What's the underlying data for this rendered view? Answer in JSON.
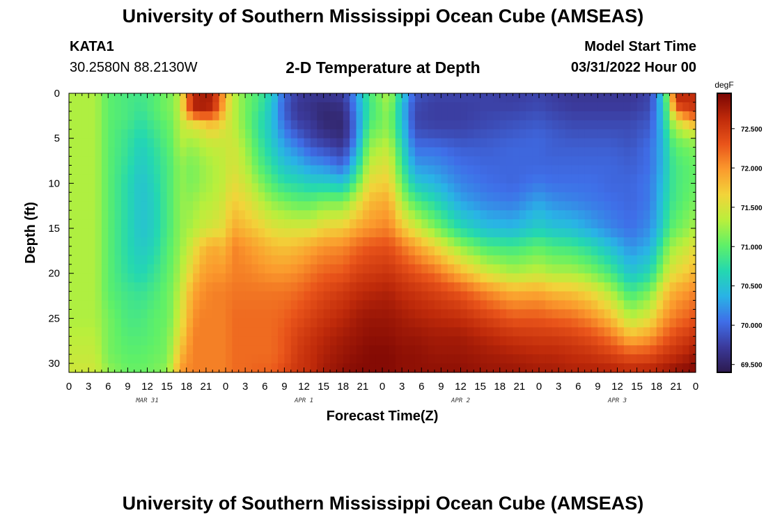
{
  "header": {
    "title": "University of Southern Mississippi Ocean Cube (AMSEAS)",
    "station_id": "KATA1",
    "coordinates": "30.2580N  88.2130W",
    "subtitle": "2-D Temperature at Depth",
    "model_start_label": "Model Start Time",
    "model_start_value": "03/31/2022 Hour 00"
  },
  "footer": {
    "title": "University of Southern Mississippi Ocean Cube (AMSEAS)"
  },
  "chart_data": {
    "type": "heatmap",
    "title": "2-D Temperature at Depth",
    "xlabel": "Forecast Time(Z)",
    "ylabel": "Depth (ft)",
    "x_hours": [
      0,
      96
    ],
    "x_tick_labels": [
      "0",
      "3",
      "6",
      "9",
      "12",
      "15",
      "18",
      "21",
      "0",
      "3",
      "6",
      "9",
      "12",
      "15",
      "18",
      "21",
      "0",
      "3",
      "6",
      "9",
      "12",
      "15",
      "18",
      "21",
      "0",
      "3",
      "6",
      "9",
      "12",
      "15",
      "18",
      "21",
      "0"
    ],
    "date_labels": [
      {
        "hour": 12,
        "label": "MAR 31"
      },
      {
        "hour": 36,
        "label": "APR 1"
      },
      {
        "hour": 60,
        "label": "APR 2"
      },
      {
        "hour": 84,
        "label": "APR 3"
      }
    ],
    "y_range": [
      0,
      31
    ],
    "y_ticks": [
      0,
      5,
      10,
      15,
      20,
      25,
      30
    ],
    "y_tick_labels": [
      "0",
      "5",
      "10",
      "15",
      "20",
      "25",
      "30"
    ],
    "colorbar": {
      "unit": "degF",
      "min": 69.4,
      "max": 72.95,
      "ticks": [
        69.5,
        70.0,
        70.5,
        71.0,
        71.5,
        72.0,
        72.5
      ],
      "tick_labels": [
        "69.500",
        "70.000",
        "70.500",
        "71.000",
        "71.500",
        "72.000",
        "72.500"
      ],
      "colors": [
        "#2c1a4e",
        "#3b3a9b",
        "#3f6ee8",
        "#29b3e6",
        "#24d8b0",
        "#5ef068",
        "#b9ef3c",
        "#f2d43a",
        "#fb9a2d",
        "#e9541a",
        "#bf2a0a",
        "#7a0503"
      ]
    },
    "depth_levels_ft": [
      0,
      1,
      2,
      3,
      4,
      5,
      6,
      8,
      10,
      12,
      15,
      17,
      20,
      22,
      25,
      27,
      29,
      31
    ],
    "time_nodes_hours": [
      0,
      4,
      6,
      9,
      11,
      13,
      15,
      16,
      17,
      19,
      20,
      22,
      24,
      25,
      27,
      29,
      31,
      33,
      35,
      37,
      39,
      42,
      44,
      46,
      49,
      51,
      53,
      56,
      60,
      64,
      68,
      72,
      74,
      77,
      80,
      83,
      86,
      89,
      91,
      92,
      93,
      95,
      96
    ],
    "temperature_degF": [
      [
        71.3,
        71.3,
        71.3,
        71.3,
        71.3,
        71.3,
        71.3,
        71.3,
        71.3,
        71.3,
        71.3,
        71.3,
        71.3,
        71.3,
        71.3,
        71.35,
        71.4,
        71.45
      ],
      [
        71.3,
        71.3,
        71.3,
        71.3,
        71.3,
        71.3,
        71.3,
        71.3,
        71.3,
        71.3,
        71.3,
        71.3,
        71.3,
        71.3,
        71.3,
        71.35,
        71.4,
        71.45
      ],
      [
        71.0,
        71.0,
        71.0,
        71.0,
        71.0,
        71.0,
        71.0,
        71.0,
        71.0,
        71.0,
        71.0,
        71.0,
        71.0,
        71.0,
        71.1,
        71.1,
        71.1,
        71.2
      ],
      [
        70.9,
        70.9,
        70.9,
        70.9,
        70.85,
        70.8,
        70.8,
        70.75,
        70.7,
        70.7,
        70.7,
        70.7,
        70.75,
        70.85,
        70.9,
        70.95,
        71.0,
        71.05
      ],
      [
        70.85,
        70.85,
        70.8,
        70.75,
        70.7,
        70.65,
        70.6,
        70.55,
        70.5,
        70.5,
        70.5,
        70.55,
        70.65,
        70.8,
        70.9,
        70.95,
        71.0,
        71.05
      ],
      [
        70.95,
        70.95,
        70.95,
        70.9,
        70.85,
        70.8,
        70.75,
        70.7,
        70.65,
        70.6,
        70.6,
        70.65,
        70.8,
        70.9,
        71.0,
        71.0,
        71.05,
        71.1
      ],
      [
        71.1,
        71.1,
        71.1,
        71.05,
        71.0,
        71.0,
        70.95,
        70.9,
        70.9,
        70.9,
        70.9,
        70.95,
        71.0,
        71.05,
        71.05,
        71.1,
        71.1,
        71.2
      ],
      [
        71.15,
        71.15,
        71.15,
        71.1,
        71.1,
        71.05,
        71.05,
        71.0,
        71.0,
        71.0,
        71.0,
        71.05,
        71.1,
        71.15,
        71.2,
        71.3,
        71.4,
        71.5
      ],
      [
        71.4,
        71.4,
        71.4,
        71.4,
        71.35,
        71.35,
        71.3,
        71.2,
        71.2,
        71.2,
        71.2,
        71.2,
        71.3,
        71.4,
        71.5,
        71.6,
        71.8,
        72.0
      ],
      [
        72.6,
        72.7,
        72.6,
        71.7,
        71.5,
        71.3,
        71.2,
        71.1,
        71.1,
        71.2,
        71.3,
        71.5,
        71.7,
        71.9,
        72.0,
        72.1,
        72.1,
        72.1
      ],
      [
        72.7,
        72.75,
        72.7,
        71.8,
        71.5,
        71.4,
        71.3,
        71.2,
        71.2,
        71.3,
        71.4,
        71.7,
        71.9,
        72.0,
        72.1,
        72.1,
        72.1,
        72.1
      ],
      [
        72.7,
        72.7,
        72.6,
        71.9,
        71.7,
        71.5,
        71.4,
        71.3,
        71.3,
        71.35,
        71.5,
        71.9,
        72.0,
        72.1,
        72.1,
        72.1,
        72.1,
        72.1
      ],
      [
        71.8,
        71.8,
        71.7,
        71.6,
        71.5,
        71.45,
        71.4,
        71.4,
        71.4,
        71.5,
        71.6,
        71.8,
        72.0,
        72.1,
        72.1,
        72.1,
        72.1,
        72.1
      ],
      [
        71.4,
        71.4,
        71.4,
        71.4,
        71.4,
        71.45,
        71.5,
        71.5,
        71.6,
        71.7,
        71.9,
        72.1,
        72.1,
        72.15,
        72.2,
        72.2,
        72.2,
        72.2
      ],
      [
        71.1,
        71.1,
        71.1,
        71.1,
        71.15,
        71.2,
        71.25,
        71.35,
        71.45,
        71.6,
        71.8,
        72.0,
        72.1,
        72.15,
        72.2,
        72.2,
        72.2,
        72.2
      ],
      [
        70.9,
        70.9,
        70.85,
        70.8,
        70.8,
        70.85,
        70.9,
        71.0,
        71.2,
        71.4,
        71.7,
        71.9,
        72.05,
        72.15,
        72.2,
        72.2,
        72.2,
        72.25
      ],
      [
        70.6,
        70.55,
        70.5,
        70.5,
        70.5,
        70.55,
        70.6,
        70.75,
        70.95,
        71.2,
        71.55,
        71.8,
        72.0,
        72.15,
        72.2,
        72.2,
        72.2,
        72.25
      ],
      [
        70.0,
        69.95,
        69.95,
        70.0,
        70.1,
        70.2,
        70.3,
        70.5,
        70.75,
        71.1,
        71.5,
        71.75,
        72.0,
        72.15,
        72.25,
        72.3,
        72.3,
        72.4
      ],
      [
        69.75,
        69.7,
        69.7,
        69.75,
        69.85,
        70.0,
        70.15,
        70.4,
        70.7,
        71.0,
        71.5,
        71.8,
        72.05,
        72.2,
        72.35,
        72.45,
        72.5,
        72.55
      ],
      [
        69.7,
        69.65,
        69.65,
        69.7,
        69.75,
        69.8,
        69.95,
        70.25,
        70.6,
        71.0,
        71.5,
        71.9,
        72.15,
        72.3,
        72.45,
        72.55,
        72.6,
        72.6
      ],
      [
        69.7,
        69.6,
        69.55,
        69.55,
        69.6,
        69.7,
        69.85,
        70.2,
        70.6,
        71.1,
        71.65,
        72.0,
        72.25,
        72.4,
        72.55,
        72.65,
        72.7,
        72.75
      ],
      [
        69.75,
        69.65,
        69.6,
        69.55,
        69.55,
        69.6,
        69.7,
        70.0,
        70.5,
        71.1,
        71.7,
        72.05,
        72.3,
        72.5,
        72.65,
        72.75,
        72.8,
        72.85
      ],
      [
        70.25,
        70.2,
        70.15,
        70.1,
        70.1,
        70.15,
        70.3,
        70.6,
        71.0,
        71.45,
        71.9,
        72.2,
        72.45,
        72.6,
        72.75,
        72.8,
        72.85,
        72.9
      ],
      [
        70.9,
        70.85,
        70.85,
        70.9,
        71.0,
        71.1,
        71.2,
        71.4,
        71.6,
        71.8,
        72.0,
        72.3,
        72.5,
        72.65,
        72.8,
        72.85,
        72.9,
        72.9
      ],
      [
        71.3,
        71.3,
        71.2,
        71.2,
        71.2,
        71.3,
        71.4,
        71.55,
        71.7,
        71.9,
        72.1,
        72.35,
        72.55,
        72.7,
        72.8,
        72.85,
        72.9,
        72.9
      ],
      [
        70.6,
        70.5,
        70.45,
        70.5,
        70.55,
        70.6,
        70.7,
        70.85,
        71.05,
        71.3,
        71.75,
        72.15,
        72.45,
        72.6,
        72.75,
        72.8,
        72.85,
        72.85
      ],
      [
        69.9,
        69.85,
        69.8,
        69.8,
        69.85,
        69.95,
        70.05,
        70.25,
        70.55,
        70.95,
        71.5,
        71.95,
        72.35,
        72.55,
        72.7,
        72.8,
        72.85,
        72.85
      ],
      [
        69.8,
        69.75,
        69.75,
        69.75,
        69.8,
        69.9,
        70.05,
        70.2,
        70.4,
        70.7,
        71.15,
        71.65,
        72.2,
        72.45,
        72.65,
        72.75,
        72.8,
        72.85
      ],
      [
        69.8,
        69.75,
        69.75,
        69.75,
        69.8,
        69.85,
        69.95,
        70.05,
        70.15,
        70.3,
        70.7,
        71.2,
        71.85,
        72.3,
        72.6,
        72.75,
        72.8,
        72.85
      ],
      [
        69.8,
        69.75,
        69.8,
        69.8,
        69.85,
        69.9,
        69.95,
        70.0,
        70.05,
        70.15,
        70.45,
        70.9,
        71.5,
        72.05,
        72.45,
        72.65,
        72.75,
        72.8
      ],
      [
        69.75,
        69.75,
        69.8,
        69.85,
        69.9,
        69.95,
        70.0,
        70.0,
        70.0,
        70.1,
        70.4,
        70.85,
        71.3,
        71.85,
        72.3,
        72.55,
        72.7,
        72.8
      ],
      [
        69.8,
        69.8,
        69.85,
        69.9,
        69.95,
        70.0,
        70.0,
        70.0,
        70.1,
        70.3,
        70.6,
        71.0,
        71.4,
        71.9,
        72.3,
        72.5,
        72.65,
        72.75
      ],
      [
        69.75,
        69.75,
        69.8,
        69.85,
        69.9,
        69.95,
        69.95,
        70.0,
        70.05,
        70.2,
        70.5,
        70.9,
        71.3,
        71.8,
        72.25,
        72.5,
        72.65,
        72.75
      ],
      [
        69.7,
        69.7,
        69.75,
        69.8,
        69.85,
        69.9,
        69.95,
        70.0,
        70.05,
        70.15,
        70.45,
        70.85,
        71.3,
        71.75,
        72.2,
        72.45,
        72.6,
        72.7
      ],
      [
        69.7,
        69.7,
        69.75,
        69.8,
        69.85,
        69.9,
        69.95,
        70.0,
        70.05,
        70.1,
        70.3,
        70.7,
        71.15,
        71.6,
        72.05,
        72.35,
        72.55,
        72.7
      ],
      [
        69.7,
        69.7,
        69.75,
        69.8,
        69.85,
        69.9,
        69.95,
        70.0,
        70.0,
        70.05,
        70.15,
        70.45,
        70.9,
        71.3,
        71.8,
        72.15,
        72.45,
        72.7
      ],
      [
        69.7,
        69.7,
        69.75,
        69.8,
        69.85,
        69.85,
        69.9,
        69.95,
        70.0,
        70.0,
        70.05,
        70.2,
        70.5,
        70.85,
        71.35,
        71.8,
        72.3,
        72.65
      ],
      [
        69.8,
        69.8,
        69.85,
        69.9,
        69.95,
        70.0,
        70.05,
        70.05,
        70.1,
        70.1,
        70.2,
        70.35,
        70.7,
        71.1,
        71.55,
        71.95,
        72.35,
        72.7
      ],
      [
        70.6,
        70.55,
        70.5,
        70.5,
        70.45,
        70.4,
        70.4,
        70.4,
        70.45,
        70.5,
        70.6,
        70.9,
        71.25,
        71.6,
        71.95,
        72.2,
        72.5,
        72.75
      ],
      [
        71.4,
        71.3,
        71.2,
        71.1,
        71.0,
        70.9,
        70.8,
        70.75,
        70.75,
        70.8,
        70.95,
        71.2,
        71.5,
        71.8,
        72.05,
        72.3,
        72.55,
        72.8
      ],
      [
        72.6,
        72.6,
        72.1,
        71.5,
        71.3,
        71.1,
        71.0,
        70.9,
        70.9,
        70.9,
        71.05,
        71.3,
        71.6,
        71.9,
        72.15,
        72.4,
        72.6,
        72.85
      ],
      [
        72.6,
        72.6,
        72.4,
        71.9,
        71.5,
        71.25,
        71.1,
        71.0,
        71.0,
        71.05,
        71.2,
        71.45,
        71.75,
        72.0,
        72.25,
        72.5,
        72.7,
        72.9
      ],
      [
        72.6,
        72.6,
        72.5,
        72.0,
        71.6,
        71.3,
        71.15,
        71.05,
        71.05,
        71.1,
        71.3,
        71.6,
        71.85,
        72.1,
        72.35,
        72.6,
        72.8,
        72.95
      ]
    ]
  }
}
